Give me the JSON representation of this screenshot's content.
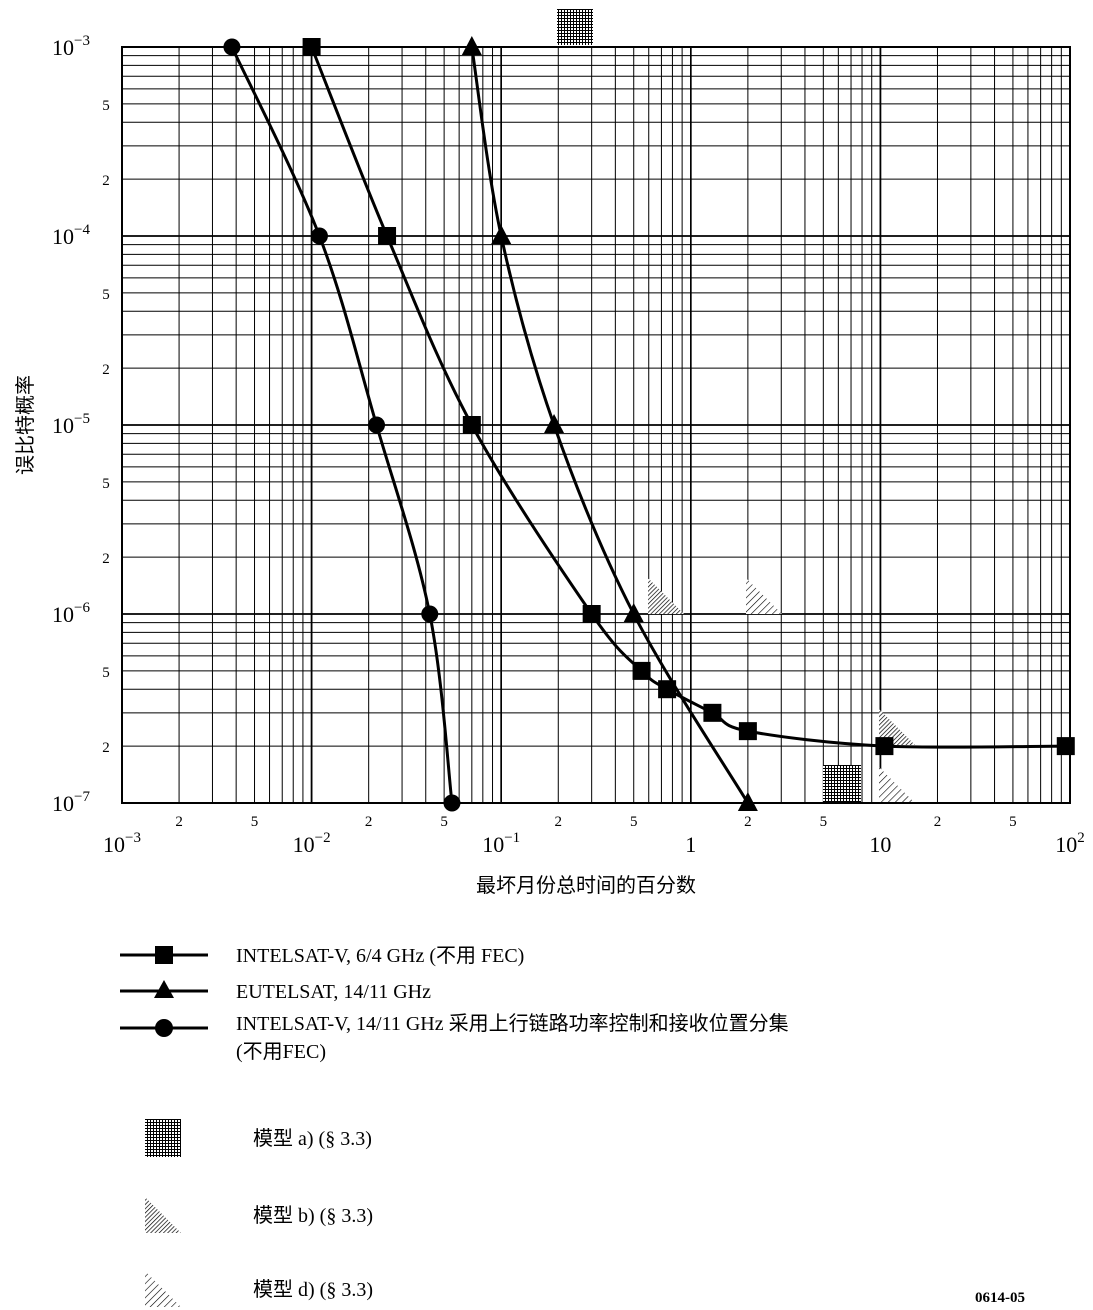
{
  "chart_data": {
    "type": "line",
    "title": "",
    "xlabel": "最坏月份总时间的百分数",
    "ylabel": "误比特概率",
    "x_scale": "log",
    "y_scale": "log",
    "xlim": [
      0.001,
      100
    ],
    "ylim": [
      1e-07,
      0.001
    ],
    "grid": true,
    "x_major_ticks": [
      {
        "base": "10",
        "exp": "−3"
      },
      {
        "base": "10",
        "exp": "−2"
      },
      {
        "base": "10",
        "exp": "−1"
      },
      {
        "base": "1",
        "exp": ""
      },
      {
        "base": "10",
        "exp": ""
      },
      {
        "base": "10",
        "exp": "2"
      }
    ],
    "y_major_ticks": [
      {
        "base": "10",
        "exp": "−3"
      },
      {
        "base": "10",
        "exp": "−4"
      },
      {
        "base": "10",
        "exp": "−5"
      },
      {
        "base": "10",
        "exp": "−6"
      },
      {
        "base": "10",
        "exp": "−7"
      }
    ],
    "minor_tick_labels": [
      "2",
      "5"
    ],
    "series": [
      {
        "name": "INTELSAT-V, 6/4 GHz (不用 FEC)",
        "marker": "square",
        "x": [
          0.01,
          0.025,
          0.07,
          0.3,
          0.55,
          0.75,
          1.3,
          2.0,
          10.5,
          95
        ],
        "y": [
          0.001,
          0.0001,
          1e-05,
          1e-06,
          5e-07,
          4e-07,
          3e-07,
          2.4e-07,
          2e-07,
          2e-07
        ]
      },
      {
        "name": "EUTELSAT, 14/11 GHz",
        "marker": "triangle",
        "x": [
          0.07,
          0.1,
          0.19,
          0.5,
          2.0
        ],
        "y": [
          0.001,
          0.0001,
          1e-05,
          1e-06,
          1e-07
        ]
      },
      {
        "name": "INTELSAT-V, 14/11 GHz 采用上行链路功率控制和接收位置分集",
        "name_line2": "(不用FEC)",
        "marker": "circle",
        "x": [
          0.0038,
          0.011,
          0.022,
          0.042,
          0.055
        ],
        "y": [
          0.001,
          0.0001,
          1e-05,
          1e-06,
          1e-07
        ]
      }
    ],
    "model_legend": [
      {
        "pattern": "crosshatch",
        "label": "模型 a) (§ 3.3)"
      },
      {
        "pattern": "dense-diagonal",
        "label": "模型 b) (§ 3.3)"
      },
      {
        "pattern": "sparse-diagonal",
        "label": "模型 d) (§ 3.3)"
      }
    ]
  },
  "figure_id": "0614-05"
}
